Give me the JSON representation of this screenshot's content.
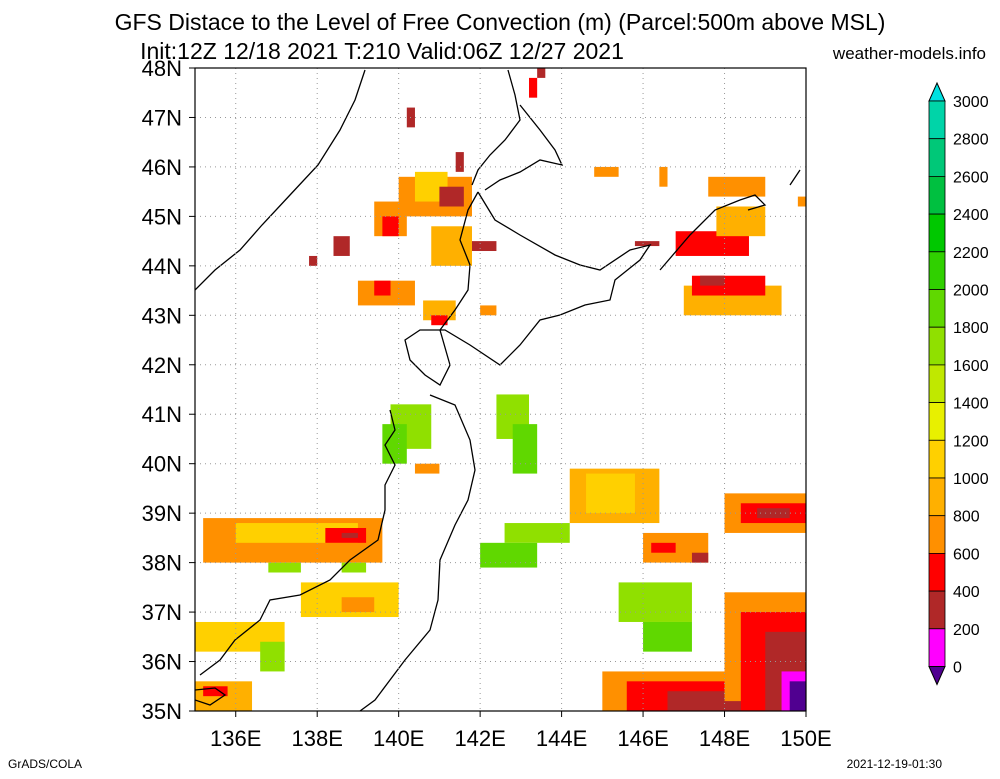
{
  "title": {
    "line1": "GFS Distace to the Level of Free Convection (m) (Parcel:500m above MSL)",
    "line2": "Init:12Z 12/18 2021 T:210 Valid:06Z 12/27 2021"
  },
  "credit": "weather-models.info",
  "footer": {
    "left": "GrADS/COLA",
    "right": "2021-12-19-01:30"
  },
  "map": {
    "lat_labels": [
      "48N",
      "47N",
      "46N",
      "45N",
      "44N",
      "43N",
      "42N",
      "41N",
      "40N",
      "39N",
      "38N",
      "37N",
      "36N",
      "35N"
    ],
    "lon_labels": [
      "136E",
      "138E",
      "140E",
      "142E",
      "144E",
      "146E",
      "148E",
      "150E"
    ],
    "lon_range": [
      135,
      150
    ],
    "lat_range": [
      35,
      48
    ],
    "grid": "dotted"
  },
  "colorbar": {
    "labels": [
      "3000",
      "2800",
      "2600",
      "2400",
      "2200",
      "2000",
      "1800",
      "1600",
      "1400",
      "1200",
      "1000",
      "800",
      "600",
      "400",
      "200",
      "0"
    ],
    "colors": [
      "#00e0e0",
      "#00d4a8",
      "#00c878",
      "#00c040",
      "#00c800",
      "#30d000",
      "#60d800",
      "#90e000",
      "#c0e800",
      "#e8f000",
      "#ffd000",
      "#ffb000",
      "#ff9000",
      "#ff0000",
      "#b02828",
      "#ff00ff",
      "#500090"
    ],
    "colors_note": "top to bottom"
  },
  "field_colors": {
    "c600": "#ff9000",
    "c800": "#ffb000",
    "c1000": "#ffd000",
    "c400": "#ff0000",
    "c200": "#b02828",
    "c100": "#ff00ff",
    "c0": "#500090",
    "c1600": "#90e000",
    "c1800": "#60d800"
  }
}
